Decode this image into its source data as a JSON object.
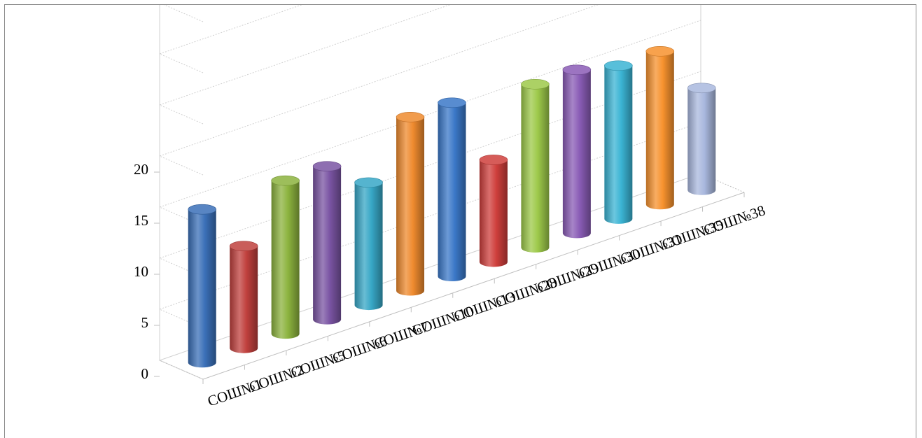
{
  "chart_data": {
    "type": "bar",
    "bar_shape": "cylinder",
    "projection": "3d-perspective",
    "title": "",
    "xlabel": "",
    "ylabel": "",
    "categories": [
      "СОШ№1",
      "СОШ№2",
      "СОШ№5",
      "СОШ№6",
      "СОШ№7",
      "СОШ№10",
      "СОШ№13",
      "СОШ№28",
      "СОШ№29",
      "СОШ№30",
      "СОШ№31",
      "СОШ№35",
      "СОШ№38"
    ],
    "values": [
      15,
      10,
      15,
      15,
      12,
      17,
      17,
      10,
      16,
      16,
      15,
      15,
      10
    ],
    "colors": [
      "#3b70b8",
      "#c0403d",
      "#8cb33e",
      "#7a54a3",
      "#37a7c6",
      "#ef8a2e",
      "#3b78c8",
      "#cf3f3c",
      "#9dc94a",
      "#8a5cb6",
      "#3bb4d4",
      "#f7922e",
      "#a9b8de"
    ],
    "ylim": [
      0,
      20
    ],
    "yticks": [
      "0",
      "5",
      "10",
      "15",
      "20"
    ],
    "grid": true,
    "legend": "none"
  }
}
